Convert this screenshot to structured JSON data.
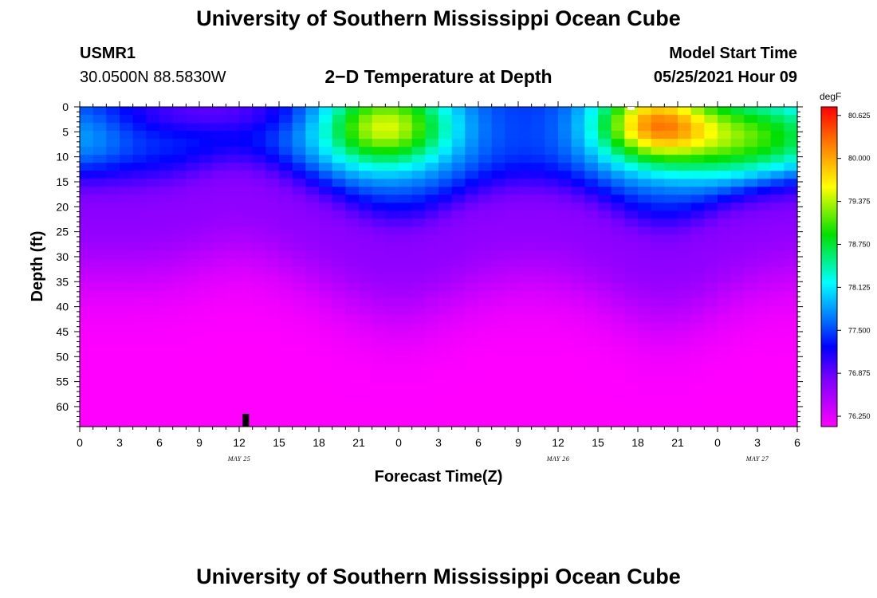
{
  "page": {
    "title_top": "University of Southern Mississippi Ocean Cube",
    "title_bottom": "University of Southern Mississippi Ocean Cube",
    "station_id": "USMR1",
    "station_coords": "30.0500N  88.5830W",
    "chart_title": "2−D Temperature at Depth",
    "model_start_label": "Model Start Time",
    "model_start_value": "05/25/2021 Hour 09"
  },
  "chart_data": {
    "type": "heatmap",
    "title": "2−D Temperature at Depth",
    "xlabel": "Forecast Time(Z)",
    "ylabel": "Depth (ft)",
    "x_tick_labels": [
      "0",
      "3",
      "6",
      "9",
      "12",
      "15",
      "18",
      "21",
      "0",
      "3",
      "6",
      "9",
      "12",
      "15",
      "18",
      "21",
      "0",
      "3",
      "6"
    ],
    "x_range_hours": [
      0,
      54
    ],
    "date_labels": [
      {
        "text": "MAY 25",
        "hour": 12
      },
      {
        "text": "MAY 26",
        "hour": 36
      },
      {
        "text": "MAY 27",
        "hour": 51
      }
    ],
    "y_tick_labels": [
      "0",
      "5",
      "10",
      "15",
      "20",
      "25",
      "30",
      "35",
      "40",
      "45",
      "50",
      "55",
      "60"
    ],
    "y_range_ft": [
      0,
      64
    ],
    "colorbar": {
      "unit": "degF",
      "min": 76.1,
      "max": 80.75,
      "labels": [
        "80.625",
        "80.000",
        "79.375",
        "78.750",
        "78.125",
        "77.500",
        "76.875",
        "76.250"
      ]
    },
    "current_time_marker_hour": 12.5,
    "grid": false
  }
}
